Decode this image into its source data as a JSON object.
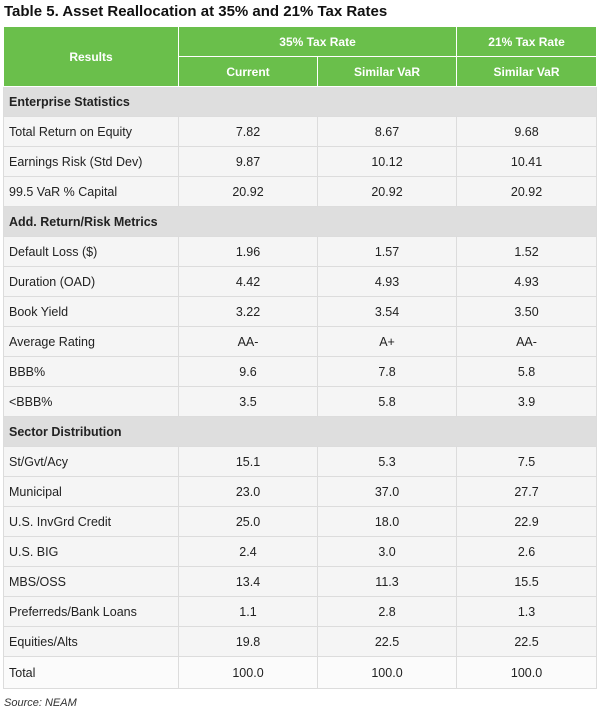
{
  "title": "Table 5. Asset Reallocation at 35% and 21% Tax Rates",
  "header": {
    "results": "Results",
    "group_35": "35% Tax Rate",
    "group_21": "21% Tax Rate",
    "sub_current": "Current",
    "sub_similar_35": "Similar VaR",
    "sub_similar_21": "Similar VaR"
  },
  "sections": [
    {
      "name": "Enterprise Statistics",
      "rows": [
        {
          "label": "Total Return on Equity",
          "values": [
            "7.82",
            "8.67",
            "9.68"
          ]
        },
        {
          "label": "Earnings Risk (Std Dev)",
          "values": [
            "9.87",
            "10.12",
            "10.41"
          ]
        },
        {
          "label": "99.5 VaR % Capital",
          "values": [
            "20.92",
            "20.92",
            "20.92"
          ]
        }
      ]
    },
    {
      "name": "Add. Return/Risk Metrics",
      "rows": [
        {
          "label": "Default Loss ($)",
          "values": [
            "1.96",
            "1.57",
            "1.52"
          ]
        },
        {
          "label": "Duration (OAD)",
          "values": [
            "4.42",
            "4.93",
            "4.93"
          ]
        },
        {
          "label": "Book Yield",
          "values": [
            "3.22",
            "3.54",
            "3.50"
          ]
        },
        {
          "label": "Average Rating",
          "values": [
            "AA-",
            "A+",
            "AA-"
          ]
        },
        {
          "label": "BBB%",
          "values": [
            "9.6",
            "7.8",
            "5.8"
          ]
        },
        {
          "label": "<BBB%",
          "values": [
            "3.5",
            "5.8",
            "3.9"
          ]
        }
      ]
    },
    {
      "name": "Sector Distribution",
      "rows": [
        {
          "label": "St/Gvt/Acy",
          "values": [
            "15.1",
            "5.3",
            "7.5"
          ]
        },
        {
          "label": "Municipal",
          "values": [
            "23.0",
            "37.0",
            "27.7"
          ]
        },
        {
          "label": "U.S. InvGrd Credit",
          "values": [
            "25.0",
            "18.0",
            "22.9"
          ]
        },
        {
          "label": "U.S. BIG",
          "values": [
            "2.4",
            "3.0",
            "2.6"
          ]
        },
        {
          "label": "MBS/OSS",
          "values": [
            "13.4",
            "11.3",
            "15.5"
          ]
        },
        {
          "label": "Preferreds/Bank Loans",
          "values": [
            "1.1",
            "2.8",
            "1.3"
          ]
        },
        {
          "label": "Equities/Alts",
          "values": [
            "19.8",
            "22.5",
            "22.5"
          ]
        },
        {
          "label": "Total",
          "values": [
            "100.0",
            "100.0",
            "100.0"
          ]
        }
      ]
    }
  ],
  "source": "Source: NEAM",
  "colors": {
    "header_green": "#6abf4b",
    "section_gray": "#dedede",
    "row_bg": "#f5f5f5"
  }
}
